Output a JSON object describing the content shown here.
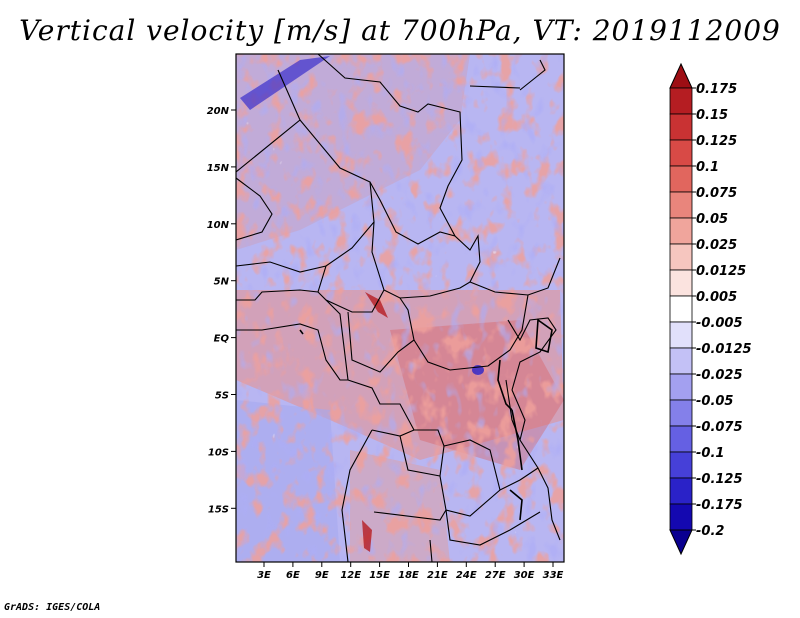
{
  "title": "Vertical velocity [m/s] at 700hPa, VT: 2019112009",
  "credit": "GrADS: IGES/COLA",
  "map": {
    "lat_ticks": [
      "20N",
      "15N",
      "10N",
      "5N",
      "EQ",
      "5S",
      "10S",
      "15S"
    ],
    "lon_ticks": [
      "3E",
      "6E",
      "9E",
      "12E",
      "15E",
      "18E",
      "21E",
      "24E",
      "27E",
      "30E",
      "33E"
    ]
  },
  "colorbar": {
    "labels": [
      "0.175",
      "0.15",
      "0.125",
      "0.1",
      "0.075",
      "0.05",
      "0.025",
      "0.0125",
      "0.005",
      "-0.005",
      "-0.0125",
      "-0.025",
      "-0.05",
      "-0.075",
      "-0.1",
      "-0.125",
      "-0.175",
      "-0.2"
    ],
    "colors": [
      "#9e0e14",
      "#b51d22",
      "#c93233",
      "#d84a46",
      "#e1665e",
      "#e9857c",
      "#f0a59c",
      "#f6c6bf",
      "#fbe3df",
      "#ffffff",
      "#e1e0fb",
      "#c3c1f6",
      "#a3a0f0",
      "#8480ea",
      "#6560e3",
      "#4640d8",
      "#2a22c8",
      "#1408b0",
      "#0a0090"
    ]
  }
}
